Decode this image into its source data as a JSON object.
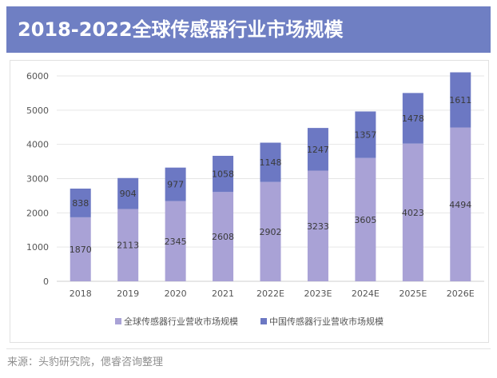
{
  "title": "2018-2022全球传感器行业市场规模",
  "source": "来源：头豹研究院，偲睿咨询整理",
  "chart_data": {
    "type": "bar",
    "stacked": true,
    "title": "2018-2022全球传感器行业市场规模",
    "categories": [
      "2018",
      "2019",
      "2020",
      "2021",
      "2022E",
      "2023E",
      "2024E",
      "2025E",
      "2026E"
    ],
    "series": [
      {
        "name": "全球传感器行业营收市场规模",
        "color": "#a9a2d6",
        "values": [
          1870,
          2113,
          2345,
          2608,
          2902,
          3233,
          3605,
          4023,
          4494
        ]
      },
      {
        "name": "中国传感器行业营收市场规模",
        "color": "#6c78c3",
        "values": [
          838,
          904,
          977,
          1058,
          1148,
          1247,
          1357,
          1478,
          1611
        ]
      }
    ],
    "ylim": [
      0,
      6000
    ],
    "yticks": [
      0,
      1000,
      2000,
      3000,
      4000,
      5000,
      6000
    ],
    "grid": true,
    "legend_position": "bottom"
  }
}
